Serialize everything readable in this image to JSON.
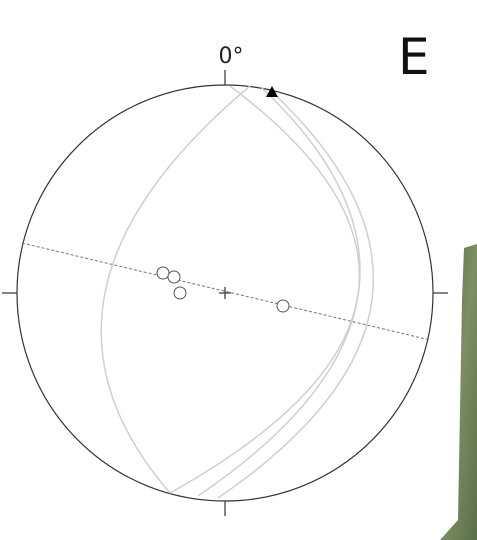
{
  "panel_label": "E",
  "north_label": "0°"
}
